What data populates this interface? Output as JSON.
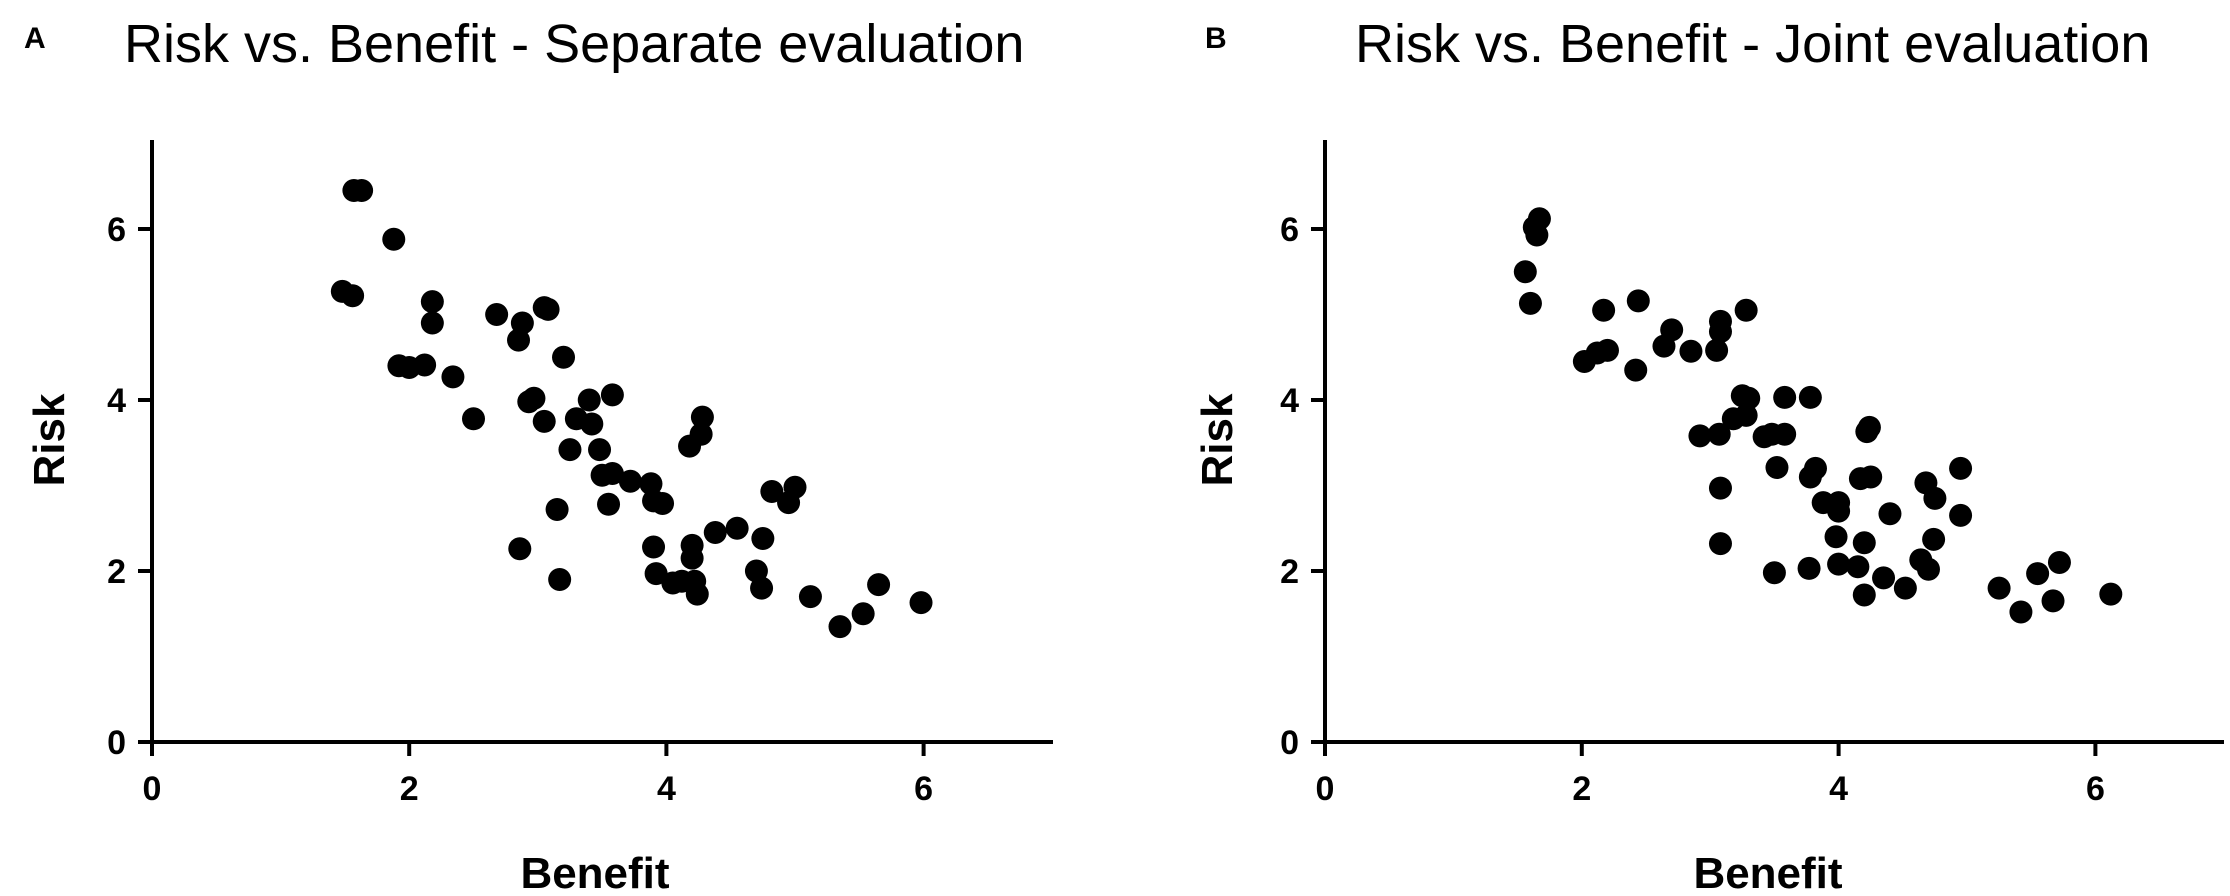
{
  "chart_data": [
    {
      "type": "scatter",
      "panel": "A",
      "title": "Risk vs. Benefit - Separate evaluation",
      "xlabel": "Benefit",
      "ylabel": "Risk",
      "xlim": [
        0,
        7
      ],
      "ylim": [
        0,
        7
      ],
      "xticks": [
        0,
        2,
        4,
        6
      ],
      "yticks": [
        0,
        2,
        4,
        6
      ],
      "color": "#000000",
      "points": [
        [
          1.57,
          6.45
        ],
        [
          1.63,
          6.45
        ],
        [
          1.88,
          5.88
        ],
        [
          1.48,
          5.27
        ],
        [
          1.56,
          5.22
        ],
        [
          2.18,
          5.15
        ],
        [
          2.18,
          4.9
        ],
        [
          1.92,
          4.4
        ],
        [
          2.0,
          4.38
        ],
        [
          2.12,
          4.41
        ],
        [
          2.34,
          4.27
        ],
        [
          2.5,
          3.78
        ],
        [
          2.68,
          5.0
        ],
        [
          2.85,
          4.7
        ],
        [
          2.88,
          4.9
        ],
        [
          3.05,
          5.08
        ],
        [
          3.08,
          5.06
        ],
        [
          3.2,
          4.5
        ],
        [
          2.93,
          3.98
        ],
        [
          2.97,
          4.02
        ],
        [
          3.05,
          3.75
        ],
        [
          3.3,
          3.78
        ],
        [
          3.4,
          4.0
        ],
        [
          3.42,
          3.72
        ],
        [
          3.58,
          4.06
        ],
        [
          3.25,
          3.42
        ],
        [
          3.48,
          3.42
        ],
        [
          3.5,
          3.12
        ],
        [
          3.58,
          3.14
        ],
        [
          3.72,
          3.05
        ],
        [
          3.88,
          3.02
        ],
        [
          3.9,
          2.82
        ],
        [
          3.97,
          2.79
        ],
        [
          3.55,
          2.78
        ],
        [
          3.15,
          2.72
        ],
        [
          2.86,
          2.26
        ],
        [
          3.17,
          1.9
        ],
        [
          3.9,
          2.28
        ],
        [
          3.92,
          1.97
        ],
        [
          4.05,
          1.86
        ],
        [
          4.12,
          1.88
        ],
        [
          4.2,
          2.3
        ],
        [
          4.2,
          2.15
        ],
        [
          4.22,
          1.88
        ],
        [
          4.24,
          1.73
        ],
        [
          4.18,
          3.46
        ],
        [
          4.27,
          3.6
        ],
        [
          4.28,
          3.8
        ],
        [
          4.38,
          2.45
        ],
        [
          4.55,
          2.5
        ],
        [
          4.7,
          2.0
        ],
        [
          4.74,
          1.8
        ],
        [
          4.75,
          2.38
        ],
        [
          4.82,
          2.93
        ],
        [
          4.95,
          2.8
        ],
        [
          5.0,
          2.98
        ],
        [
          5.12,
          1.7
        ],
        [
          5.35,
          1.35
        ],
        [
          5.53,
          1.5
        ],
        [
          5.65,
          1.84
        ],
        [
          5.98,
          1.63
        ]
      ]
    },
    {
      "type": "scatter",
      "panel": "B",
      "title": "Risk vs. Benefit - Joint evaluation",
      "xlabel": "Benefit",
      "ylabel": "Risk",
      "xlim": [
        0,
        7
      ],
      "ylim": [
        0,
        7
      ],
      "xticks": [
        0,
        2,
        4,
        6
      ],
      "yticks": [
        0,
        2,
        4,
        6
      ],
      "color": "#000000",
      "points": [
        [
          1.63,
          6.02
        ],
        [
          1.67,
          6.12
        ],
        [
          1.65,
          5.93
        ],
        [
          1.56,
          5.5
        ],
        [
          1.6,
          5.13
        ],
        [
          2.02,
          4.45
        ],
        [
          2.12,
          4.55
        ],
        [
          2.2,
          4.58
        ],
        [
          2.17,
          5.05
        ],
        [
          2.44,
          5.16
        ],
        [
          2.42,
          4.35
        ],
        [
          2.64,
          4.63
        ],
        [
          2.7,
          4.82
        ],
        [
          2.85,
          4.57
        ],
        [
          3.05,
          4.58
        ],
        [
          3.08,
          4.8
        ],
        [
          3.08,
          4.92
        ],
        [
          3.28,
          5.05
        ],
        [
          3.25,
          4.05
        ],
        [
          3.3,
          4.02
        ],
        [
          3.28,
          3.82
        ],
        [
          3.18,
          3.78
        ],
        [
          2.92,
          3.58
        ],
        [
          3.07,
          3.6
        ],
        [
          3.42,
          3.57
        ],
        [
          3.48,
          3.6
        ],
        [
          3.58,
          3.6
        ],
        [
          3.58,
          4.03
        ],
        [
          3.78,
          4.03
        ],
        [
          4.24,
          3.68
        ],
        [
          4.22,
          3.63
        ],
        [
          3.52,
          3.21
        ],
        [
          3.78,
          3.1
        ],
        [
          3.82,
          3.2
        ],
        [
          4.17,
          3.08
        ],
        [
          4.25,
          3.1
        ],
        [
          3.08,
          2.97
        ],
        [
          3.88,
          2.8
        ],
        [
          4.0,
          2.8
        ],
        [
          4.0,
          2.7
        ],
        [
          3.98,
          2.4
        ],
        [
          4.4,
          2.67
        ],
        [
          4.68,
          3.03
        ],
        [
          4.75,
          2.85
        ],
        [
          4.95,
          3.2
        ],
        [
          4.95,
          2.65
        ],
        [
          4.74,
          2.37
        ],
        [
          3.08,
          2.32
        ],
        [
          3.5,
          1.98
        ],
        [
          3.77,
          2.03
        ],
        [
          4.0,
          2.08
        ],
        [
          4.15,
          2.05
        ],
        [
          4.2,
          2.33
        ],
        [
          4.2,
          1.72
        ],
        [
          4.35,
          1.92
        ],
        [
          4.52,
          1.8
        ],
        [
          4.64,
          2.13
        ],
        [
          4.7,
          2.02
        ],
        [
          5.25,
          1.8
        ],
        [
          5.42,
          1.52
        ],
        [
          5.55,
          1.97
        ],
        [
          5.67,
          1.65
        ],
        [
          5.72,
          2.1
        ],
        [
          6.12,
          1.73
        ]
      ]
    }
  ]
}
